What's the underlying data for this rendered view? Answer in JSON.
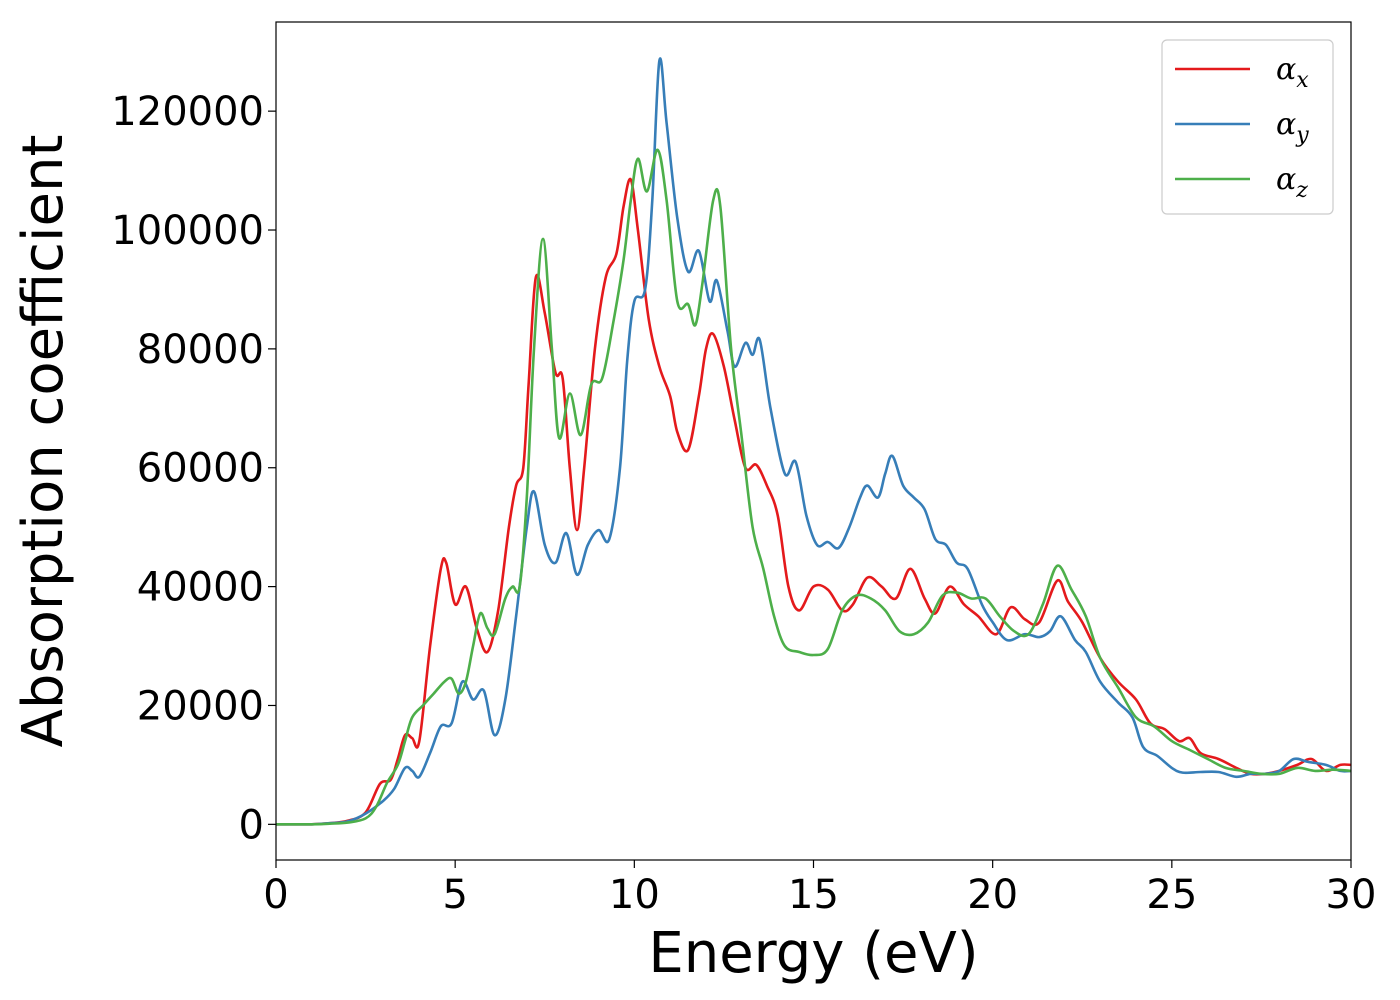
{
  "chart_data": {
    "type": "line",
    "xlabel": "Energy (eV)",
    "ylabel": "Absorption coefficient",
    "xlim": [
      0,
      30
    ],
    "ylim": [
      -6000,
      135000
    ],
    "xticks": [
      0,
      5,
      10,
      15,
      20,
      25,
      30
    ],
    "xtick_labels": [
      "0",
      "5",
      "10",
      "15",
      "20",
      "25",
      "30"
    ],
    "yticks": [
      0,
      20000,
      40000,
      60000,
      80000,
      100000,
      120000
    ],
    "ytick_labels": [
      "0",
      "20000",
      "40000",
      "60000",
      "80000",
      "100000",
      "120000"
    ],
    "grid": false,
    "legend_position": "top-right",
    "series": [
      {
        "name": "α_x",
        "legend_symbol": "α",
        "legend_subscript": "x",
        "color": "#e41a1c",
        "points": [
          [
            0,
            0
          ],
          [
            1,
            0
          ],
          [
            1.5,
            200
          ],
          [
            2,
            600
          ],
          [
            2.5,
            2000
          ],
          [
            2.9,
            6800
          ],
          [
            3.2,
            7500
          ],
          [
            3.4,
            11000
          ],
          [
            3.6,
            15000
          ],
          [
            3.8,
            14500
          ],
          [
            4.0,
            14000
          ],
          [
            4.3,
            30000
          ],
          [
            4.6,
            43000
          ],
          [
            4.75,
            44000
          ],
          [
            5.0,
            37000
          ],
          [
            5.3,
            40000
          ],
          [
            5.6,
            33000
          ],
          [
            5.9,
            29000
          ],
          [
            6.2,
            36000
          ],
          [
            6.5,
            50000
          ],
          [
            6.7,
            57000
          ],
          [
            6.9,
            60000
          ],
          [
            7.05,
            74000
          ],
          [
            7.25,
            92000
          ],
          [
            7.5,
            86000
          ],
          [
            7.8,
            76000
          ],
          [
            8.0,
            75000
          ],
          [
            8.2,
            60000
          ],
          [
            8.4,
            49500
          ],
          [
            8.6,
            60000
          ],
          [
            8.9,
            80000
          ],
          [
            9.2,
            92000
          ],
          [
            9.5,
            96000
          ],
          [
            9.7,
            104000
          ],
          [
            9.9,
            108500
          ],
          [
            10.1,
            100000
          ],
          [
            10.4,
            85000
          ],
          [
            10.7,
            77000
          ],
          [
            11.0,
            72000
          ],
          [
            11.2,
            66000
          ],
          [
            11.5,
            63000
          ],
          [
            11.8,
            72000
          ],
          [
            12.0,
            80000
          ],
          [
            12.2,
            82500
          ],
          [
            12.5,
            77000
          ],
          [
            12.8,
            68000
          ],
          [
            13.1,
            60000
          ],
          [
            13.4,
            60500
          ],
          [
            13.7,
            57000
          ],
          [
            14.0,
            52000
          ],
          [
            14.3,
            40000
          ],
          [
            14.6,
            36000
          ],
          [
            15.0,
            40000
          ],
          [
            15.4,
            39500
          ],
          [
            15.8,
            36000
          ],
          [
            16.1,
            37000
          ],
          [
            16.5,
            41500
          ],
          [
            16.9,
            40000
          ],
          [
            17.3,
            38000
          ],
          [
            17.7,
            43000
          ],
          [
            18.1,
            38000
          ],
          [
            18.4,
            35500
          ],
          [
            18.8,
            40000
          ],
          [
            19.2,
            37000
          ],
          [
            19.6,
            35000
          ],
          [
            20.1,
            32000
          ],
          [
            20.5,
            36500
          ],
          [
            20.9,
            34500
          ],
          [
            21.3,
            34000
          ],
          [
            21.8,
            41000
          ],
          [
            22.1,
            37500
          ],
          [
            22.5,
            34000
          ],
          [
            23.0,
            28000
          ],
          [
            23.5,
            24000
          ],
          [
            24.0,
            21000
          ],
          [
            24.4,
            17000
          ],
          [
            24.8,
            16000
          ],
          [
            25.2,
            14000
          ],
          [
            25.5,
            14500
          ],
          [
            25.8,
            12000
          ],
          [
            26.3,
            11000
          ],
          [
            26.8,
            9500
          ],
          [
            27.2,
            8500
          ],
          [
            27.6,
            8500
          ],
          [
            28.0,
            9000
          ],
          [
            28.5,
            10000
          ],
          [
            28.9,
            11000
          ],
          [
            29.3,
            9000
          ],
          [
            29.7,
            10000
          ],
          [
            30.0,
            10000
          ]
        ]
      },
      {
        "name": "α_y",
        "legend_symbol": "α",
        "legend_subscript": "y",
        "color": "#377eb8",
        "points": [
          [
            0,
            0
          ],
          [
            1,
            0
          ],
          [
            1.5,
            200
          ],
          [
            2,
            500
          ],
          [
            2.5,
            1800
          ],
          [
            3.0,
            4000
          ],
          [
            3.3,
            6000
          ],
          [
            3.6,
            9500
          ],
          [
            3.8,
            9000
          ],
          [
            4.0,
            8000
          ],
          [
            4.3,
            12000
          ],
          [
            4.6,
            16500
          ],
          [
            4.9,
            17000
          ],
          [
            5.2,
            24000
          ],
          [
            5.5,
            21000
          ],
          [
            5.8,
            22500
          ],
          [
            6.1,
            15000
          ],
          [
            6.4,
            21000
          ],
          [
            6.7,
            35000
          ],
          [
            7.0,
            50000
          ],
          [
            7.2,
            56000
          ],
          [
            7.5,
            47000
          ],
          [
            7.8,
            44000
          ],
          [
            8.1,
            49000
          ],
          [
            8.4,
            42000
          ],
          [
            8.7,
            47000
          ],
          [
            9.0,
            49500
          ],
          [
            9.3,
            48000
          ],
          [
            9.6,
            60000
          ],
          [
            9.8,
            78000
          ],
          [
            10.0,
            88000
          ],
          [
            10.3,
            90000
          ],
          [
            10.5,
            105000
          ],
          [
            10.7,
            128500
          ],
          [
            10.9,
            118000
          ],
          [
            11.2,
            102000
          ],
          [
            11.5,
            93000
          ],
          [
            11.8,
            96500
          ],
          [
            12.1,
            88000
          ],
          [
            12.3,
            91500
          ],
          [
            12.6,
            83000
          ],
          [
            12.8,
            77000
          ],
          [
            13.1,
            81000
          ],
          [
            13.3,
            79000
          ],
          [
            13.5,
            81500
          ],
          [
            13.8,
            70000
          ],
          [
            14.2,
            59000
          ],
          [
            14.5,
            61000
          ],
          [
            14.8,
            52000
          ],
          [
            15.1,
            47000
          ],
          [
            15.4,
            47500
          ],
          [
            15.7,
            46500
          ],
          [
            16.0,
            50000
          ],
          [
            16.3,
            55000
          ],
          [
            16.5,
            57000
          ],
          [
            16.8,
            55000
          ],
          [
            17.0,
            59000
          ],
          [
            17.2,
            62000
          ],
          [
            17.5,
            57000
          ],
          [
            17.8,
            55000
          ],
          [
            18.1,
            53000
          ],
          [
            18.4,
            48000
          ],
          [
            18.7,
            47000
          ],
          [
            19.0,
            44000
          ],
          [
            19.3,
            43000
          ],
          [
            19.7,
            37000
          ],
          [
            20.0,
            34000
          ],
          [
            20.4,
            31000
          ],
          [
            20.9,
            32000
          ],
          [
            21.3,
            31500
          ],
          [
            21.6,
            32500
          ],
          [
            21.9,
            35000
          ],
          [
            22.3,
            31000
          ],
          [
            22.6,
            29000
          ],
          [
            23.0,
            24000
          ],
          [
            23.5,
            20500
          ],
          [
            23.9,
            18000
          ],
          [
            24.2,
            13000
          ],
          [
            24.6,
            11500
          ],
          [
            25.0,
            9500
          ],
          [
            25.3,
            8700
          ],
          [
            25.8,
            8800
          ],
          [
            26.3,
            8800
          ],
          [
            26.8,
            8000
          ],
          [
            27.2,
            8500
          ],
          [
            27.6,
            8500
          ],
          [
            28.0,
            9000
          ],
          [
            28.4,
            11000
          ],
          [
            28.8,
            10500
          ],
          [
            29.3,
            10000
          ],
          [
            29.7,
            9000
          ],
          [
            30.0,
            9000
          ]
        ]
      },
      {
        "name": "α_z",
        "legend_symbol": "α",
        "legend_subscript": "z",
        "color": "#4daf4a",
        "points": [
          [
            0,
            0
          ],
          [
            1,
            0
          ],
          [
            1.5,
            100
          ],
          [
            2,
            300
          ],
          [
            2.5,
            1000
          ],
          [
            2.8,
            3000
          ],
          [
            3.1,
            7000
          ],
          [
            3.4,
            10000
          ],
          [
            3.6,
            14000
          ],
          [
            3.8,
            18000
          ],
          [
            4.1,
            20000
          ],
          [
            4.4,
            22000
          ],
          [
            4.7,
            24000
          ],
          [
            4.9,
            24500
          ],
          [
            5.1,
            22000
          ],
          [
            5.3,
            24000
          ],
          [
            5.5,
            30000
          ],
          [
            5.7,
            35500
          ],
          [
            5.9,
            33000
          ],
          [
            6.1,
            32000
          ],
          [
            6.4,
            38000
          ],
          [
            6.6,
            40000
          ],
          [
            6.8,
            40000
          ],
          [
            7.0,
            55000
          ],
          [
            7.2,
            80000
          ],
          [
            7.45,
            98500
          ],
          [
            7.7,
            80000
          ],
          [
            7.9,
            65000
          ],
          [
            8.2,
            72500
          ],
          [
            8.5,
            65500
          ],
          [
            8.8,
            74000
          ],
          [
            9.1,
            75000
          ],
          [
            9.4,
            84000
          ],
          [
            9.7,
            95000
          ],
          [
            9.9,
            105000
          ],
          [
            10.1,
            112000
          ],
          [
            10.35,
            106500
          ],
          [
            10.65,
            113500
          ],
          [
            10.9,
            105000
          ],
          [
            11.2,
            88000
          ],
          [
            11.5,
            87500
          ],
          [
            11.7,
            84000
          ],
          [
            11.9,
            91000
          ],
          [
            12.2,
            105000
          ],
          [
            12.4,
            104000
          ],
          [
            12.7,
            80000
          ],
          [
            13.0,
            65000
          ],
          [
            13.3,
            50000
          ],
          [
            13.6,
            43000
          ],
          [
            13.9,
            35000
          ],
          [
            14.2,
            30000
          ],
          [
            14.6,
            29000
          ],
          [
            15.0,
            28500
          ],
          [
            15.4,
            29500
          ],
          [
            15.8,
            36000
          ],
          [
            16.2,
            38500
          ],
          [
            16.6,
            38000
          ],
          [
            17.0,
            36000
          ],
          [
            17.4,
            32500
          ],
          [
            17.8,
            32000
          ],
          [
            18.2,
            34000
          ],
          [
            18.6,
            38500
          ],
          [
            19.0,
            39000
          ],
          [
            19.4,
            38000
          ],
          [
            19.8,
            38000
          ],
          [
            20.2,
            35000
          ],
          [
            20.6,
            32500
          ],
          [
            21.0,
            32000
          ],
          [
            21.4,
            37000
          ],
          [
            21.8,
            43500
          ],
          [
            22.2,
            39500
          ],
          [
            22.6,
            35000
          ],
          [
            23.0,
            28000
          ],
          [
            23.5,
            23000
          ],
          [
            24.0,
            18000
          ],
          [
            24.5,
            16500
          ],
          [
            25.0,
            14000
          ],
          [
            25.5,
            12500
          ],
          [
            26.0,
            11000
          ],
          [
            26.5,
            9500
          ],
          [
            27.0,
            9000
          ],
          [
            27.5,
            8500
          ],
          [
            28.0,
            8500
          ],
          [
            28.5,
            9500
          ],
          [
            29.0,
            9000
          ],
          [
            29.5,
            9200
          ],
          [
            30.0,
            9000
          ]
        ]
      }
    ]
  }
}
